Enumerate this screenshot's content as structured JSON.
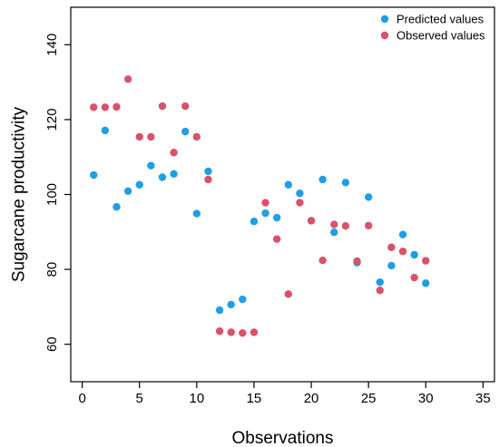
{
  "chart_data": {
    "type": "scatter",
    "title": "",
    "xlabel": "Observations",
    "ylabel": "Sugarcane productivity",
    "xlim": [
      -1,
      36
    ],
    "ylim": [
      50,
      150
    ],
    "xticks": [
      0,
      5,
      10,
      15,
      20,
      25,
      30,
      35
    ],
    "yticks": [
      60,
      80,
      100,
      120,
      140
    ],
    "grid": false,
    "legend_position": "top-right",
    "series": [
      {
        "name": "Predicted values",
        "color": "#1f9ee6",
        "x": [
          1,
          2,
          3,
          4,
          5,
          6,
          7,
          8,
          9,
          10,
          11,
          12,
          13,
          14,
          15,
          16,
          17,
          18,
          19,
          20,
          21,
          22,
          23,
          24,
          25,
          26,
          27,
          28,
          29,
          30
        ],
        "y": [
          105.2,
          117.1,
          96.7,
          100.9,
          102.6,
          107.7,
          104.6,
          105.5,
          116.8,
          94.9,
          106.2,
          69.1,
          70.6,
          72.0,
          92.8,
          95.0,
          93.8,
          102.6,
          100.3,
          93.0,
          104.0,
          89.9,
          103.2,
          81.8,
          99.3,
          76.6,
          81.0,
          89.3,
          83.9,
          76.3
        ]
      },
      {
        "name": "Observed values",
        "color": "#d9526a",
        "x": [
          1,
          2,
          3,
          4,
          5,
          6,
          7,
          8,
          9,
          10,
          11,
          12,
          13,
          14,
          15,
          16,
          17,
          18,
          19,
          20,
          21,
          22,
          23,
          24,
          25,
          26,
          27,
          28,
          29,
          30
        ],
        "y": [
          123.3,
          123.3,
          123.4,
          130.8,
          115.4,
          115.4,
          123.6,
          111.2,
          123.6,
          115.4,
          104.0,
          63.5,
          63.2,
          63.0,
          63.2,
          97.8,
          88.1,
          73.4,
          97.8,
          93.0,
          82.4,
          92.0,
          91.6,
          82.2,
          91.7,
          74.4,
          85.9,
          84.8,
          77.8,
          82.3
        ]
      }
    ]
  }
}
